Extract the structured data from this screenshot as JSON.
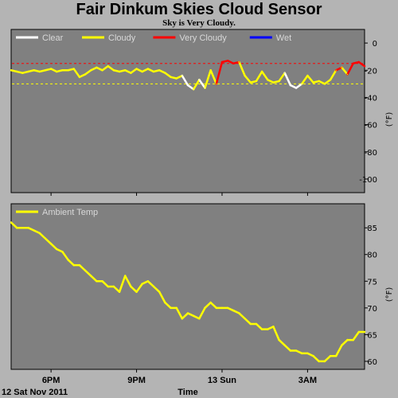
{
  "header": {
    "title": "Fair Dinkum Skies Cloud Sensor",
    "subtitle": "Sky is Very Cloudy."
  },
  "footer": {
    "date_label": "12 Sat Nov 2011",
    "xlabel": "Time"
  },
  "colors": {
    "background": "#b4b4b4",
    "plot_bg": "#808080",
    "clear": "#ffffff",
    "cloudy": "#ffff00",
    "very_cloudy": "#ff0000",
    "wet": "#0000ff",
    "ambient": "#ffff00",
    "threshold_red": "#ff0000",
    "threshold_yellow": "#ffff00"
  },
  "chart_data": [
    {
      "type": "line",
      "name": "sky",
      "ylabel": "(°F)",
      "ylim": [
        -110,
        10
      ],
      "yticks": [
        0,
        -20,
        -40,
        -60,
        -80,
        -100
      ],
      "xticks": [
        "6PM",
        "9PM",
        "13 Sun",
        "3AM"
      ],
      "xtick_hours": [
        18,
        21,
        24,
        27
      ],
      "xlim_hours": [
        16.6,
        29.0
      ],
      "grid": false,
      "legend": [
        {
          "label": "Clear",
          "key": "clear"
        },
        {
          "label": "Cloudy",
          "key": "cloudy"
        },
        {
          "label": "Very Cloudy",
          "key": "very_cloudy"
        },
        {
          "label": "Wet",
          "key": "wet"
        }
      ],
      "thresholds": [
        {
          "value": -15,
          "color_key": "threshold_red"
        },
        {
          "value": -30,
          "color_key": "threshold_yellow"
        }
      ],
      "x": [
        16.6,
        16.8,
        17.0,
        17.2,
        17.4,
        17.6,
        17.8,
        18.0,
        18.2,
        18.4,
        18.6,
        18.8,
        19.0,
        19.2,
        19.4,
        19.6,
        19.8,
        20.0,
        20.2,
        20.4,
        20.6,
        20.8,
        21.0,
        21.2,
        21.4,
        21.6,
        21.8,
        22.0,
        22.2,
        22.4,
        22.6,
        22.8,
        23.0,
        23.2,
        23.4,
        23.6,
        23.8,
        24.0,
        24.2,
        24.4,
        24.6,
        24.8,
        25.0,
        25.2,
        25.4,
        25.6,
        25.8,
        26.0,
        26.2,
        26.4,
        26.6,
        26.8,
        27.0,
        27.2,
        27.4,
        27.6,
        27.8,
        28.0,
        28.2,
        28.4,
        28.6,
        28.8,
        29.0
      ],
      "y": [
        -20,
        -21,
        -22,
        -21,
        -20,
        -21,
        -20,
        -19,
        -21,
        -20,
        -20,
        -19,
        -25,
        -23,
        -20,
        -18,
        -20,
        -17,
        -20,
        -21,
        -20,
        -22,
        -19,
        -21,
        -19,
        -21,
        -20,
        -22,
        -25,
        -26,
        -24,
        -31,
        -34,
        -27,
        -33,
        -20,
        -30,
        -14,
        -13,
        -15,
        -14,
        -24,
        -29,
        -28,
        -21,
        -27,
        -29,
        -28,
        -22,
        -31,
        -33,
        -30,
        -24,
        -29,
        -28,
        -30,
        -27,
        -20,
        -18,
        -23,
        -15,
        -14,
        -17
      ],
      "status": [
        "cloudy",
        "cloudy",
        "cloudy",
        "cloudy",
        "cloudy",
        "cloudy",
        "cloudy",
        "cloudy",
        "cloudy",
        "cloudy",
        "cloudy",
        "cloudy",
        "cloudy",
        "cloudy",
        "cloudy",
        "cloudy",
        "cloudy",
        "cloudy",
        "cloudy",
        "cloudy",
        "cloudy",
        "cloudy",
        "cloudy",
        "cloudy",
        "cloudy",
        "cloudy",
        "cloudy",
        "cloudy",
        "cloudy",
        "cloudy",
        "cloudy",
        "clear",
        "clear",
        "cloudy",
        "clear",
        "cloudy",
        "cloudy",
        "very_cloudy",
        "very_cloudy",
        "very_cloudy",
        "very_cloudy",
        "cloudy",
        "cloudy",
        "cloudy",
        "cloudy",
        "cloudy",
        "cloudy",
        "cloudy",
        "cloudy",
        "clear",
        "clear",
        "clear",
        "cloudy",
        "cloudy",
        "cloudy",
        "cloudy",
        "cloudy",
        "cloudy",
        "very_cloudy",
        "cloudy",
        "very_cloudy",
        "very_cloudy",
        "very_cloudy"
      ]
    },
    {
      "type": "line",
      "name": "ambient",
      "ylabel": "(°F)",
      "ylim": [
        58.5,
        89.5
      ],
      "yticks": [
        85,
        80,
        75,
        70,
        65,
        60
      ],
      "xticks": [
        "6PM",
        "9PM",
        "13 Sun",
        "3AM"
      ],
      "xtick_hours": [
        18,
        21,
        24,
        27
      ],
      "xlim_hours": [
        16.6,
        29.0
      ],
      "grid": false,
      "legend": [
        {
          "label": "Ambient Temp",
          "key": "ambient"
        }
      ],
      "x": [
        16.6,
        16.8,
        17.0,
        17.2,
        17.4,
        17.6,
        17.8,
        18.0,
        18.2,
        18.4,
        18.6,
        18.8,
        19.0,
        19.2,
        19.4,
        19.6,
        19.8,
        20.0,
        20.2,
        20.4,
        20.6,
        20.8,
        21.0,
        21.2,
        21.4,
        21.6,
        21.8,
        22.0,
        22.2,
        22.4,
        22.6,
        22.8,
        23.0,
        23.2,
        23.4,
        23.6,
        23.8,
        24.0,
        24.2,
        24.4,
        24.6,
        24.8,
        25.0,
        25.2,
        25.4,
        25.6,
        25.8,
        26.0,
        26.2,
        26.4,
        26.6,
        26.8,
        27.0,
        27.2,
        27.4,
        27.6,
        27.8,
        28.0,
        28.2,
        28.4,
        28.6,
        28.8,
        29.0
      ],
      "y": [
        86,
        85,
        85,
        85,
        84.5,
        84,
        83,
        82,
        81,
        80.5,
        79,
        78,
        78,
        77,
        76,
        75,
        75,
        74,
        74,
        73,
        76,
        74,
        73,
        74.5,
        75,
        74,
        73,
        71,
        70,
        70,
        68,
        69,
        68.5,
        68,
        70,
        71,
        70,
        70,
        70,
        69.5,
        69,
        68,
        67,
        67,
        66,
        66,
        66.5,
        64,
        63,
        62,
        62,
        61.5,
        61.5,
        61,
        60,
        60,
        61,
        61,
        63,
        64,
        64,
        65.5,
        65.5
      ]
    }
  ]
}
